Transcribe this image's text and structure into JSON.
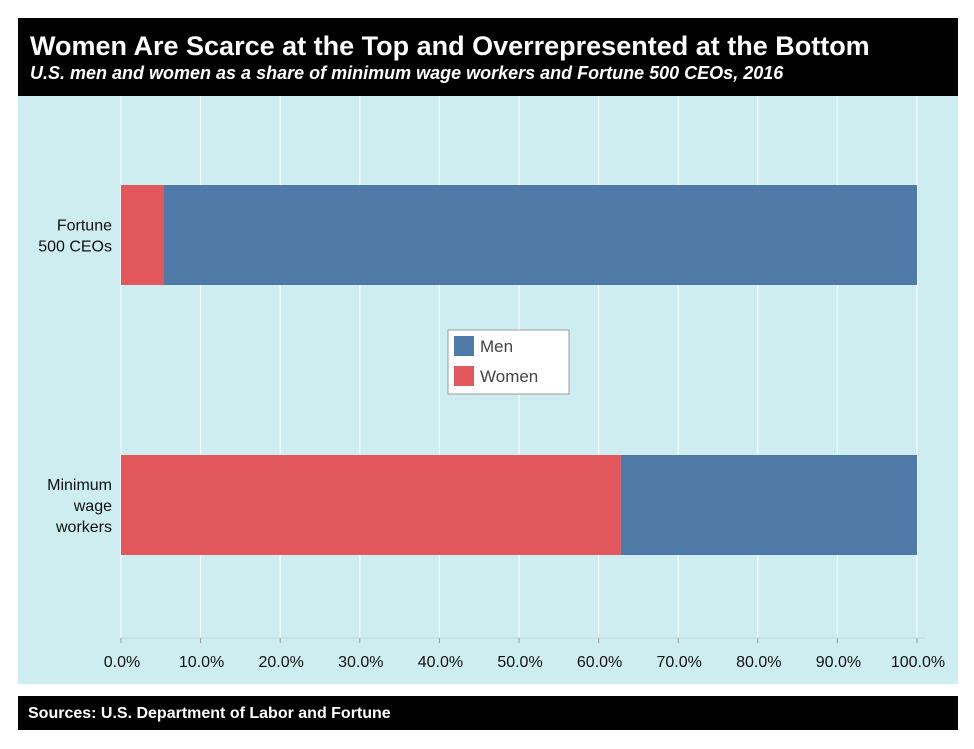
{
  "header": {
    "title": "Women Are Scarce at the Top and Overrepresented at the Bottom",
    "subtitle": "U.S. men and women as a share of minimum wage workers and Fortune 500 CEOs, 2016"
  },
  "footer": {
    "source": "Sources: U.S. Department of Labor and Fortune"
  },
  "colors": {
    "background": "#cdedf0",
    "men": "#4f79a7",
    "women": "#e1575b",
    "header": "#000000"
  },
  "chart_data": {
    "type": "bar",
    "orientation": "horizontal",
    "stacked": true,
    "categories": [
      {
        "key": "fortune",
        "lines": [
          "Fortune",
          "500 CEOs"
        ]
      },
      {
        "key": "minwage",
        "lines": [
          "Minimum",
          "wage",
          "workers"
        ]
      }
    ],
    "series": [
      {
        "name": "Women",
        "color": "#e1575b",
        "values": [
          5.4,
          62.8
        ]
      },
      {
        "name": "Men",
        "color": "#4f79a7",
        "values": [
          94.6,
          37.2
        ]
      }
    ],
    "legend_order": [
      "Men",
      "Women"
    ],
    "legend_position": "center",
    "xlim": [
      0,
      100
    ],
    "ticks": [
      0,
      10,
      20,
      30,
      40,
      50,
      60,
      70,
      80,
      90,
      100
    ],
    "tick_labels": [
      "0.0%",
      "10.0%",
      "20.0%",
      "30.0%",
      "40.0%",
      "50.0%",
      "60.0%",
      "70.0%",
      "80.0%",
      "90.0%",
      "100.0%"
    ],
    "grid": true,
    "xlabel": "",
    "ylabel": ""
  }
}
